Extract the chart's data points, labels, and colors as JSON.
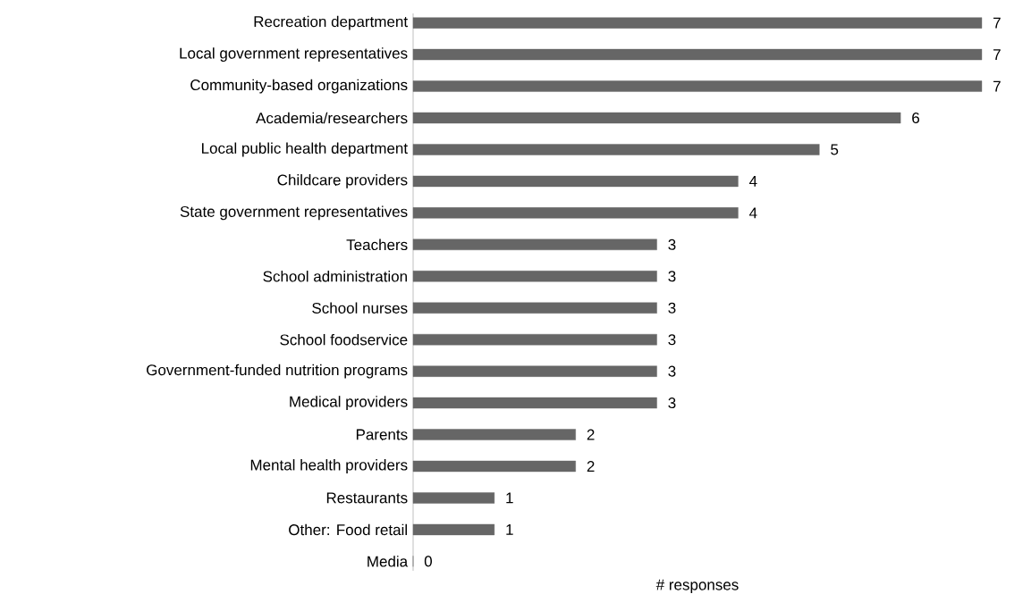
{
  "chart_data": {
    "type": "bar",
    "orientation": "horizontal",
    "xlabel": "# responses",
    "categories": [
      "Recreation department",
      "Local government representatives",
      "Community-based organizations",
      "Academia/researchers",
      "Local public health department",
      "Childcare providers",
      "State government representatives",
      "Teachers",
      "School administration",
      "School nurses",
      "School foodservice",
      "Government-funded nutrition programs",
      "Medical providers",
      "Parents",
      "Mental health providers",
      "Restaurants",
      "Other: Food retail",
      "Media"
    ],
    "values": [
      7,
      7,
      7,
      6,
      5,
      4,
      4,
      3,
      3,
      3,
      3,
      3,
      3,
      2,
      2,
      1,
      1,
      0
    ],
    "color": "#666666",
    "data_labels": true,
    "tick_labels": "y"
  }
}
